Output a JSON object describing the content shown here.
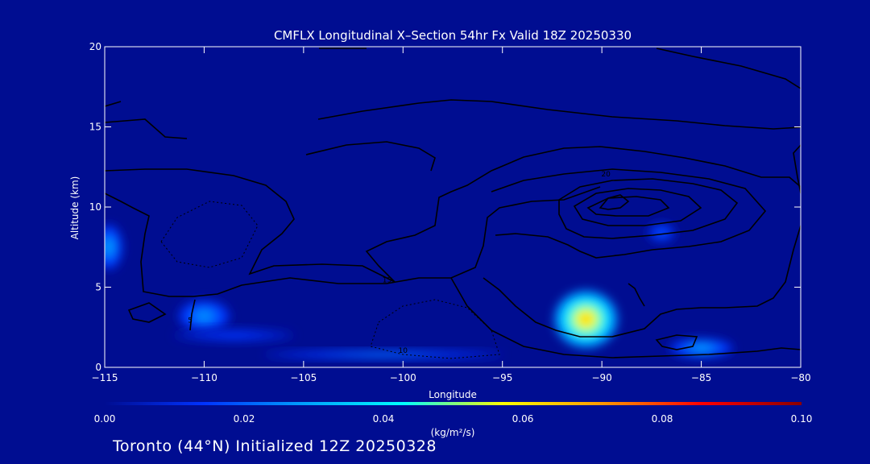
{
  "chart_data": {
    "type": "heatmap",
    "title": "CMFLX Longitudinal X–Section 54hr  Fx Valid 18Z 20250330",
    "xlabel": "Longitude",
    "ylabel": "Altitude (km)",
    "xlim": [
      -115,
      -80
    ],
    "ylim": [
      0,
      20
    ],
    "x_ticks": [
      -115,
      -110,
      -105,
      -100,
      -95,
      -90,
      -85,
      -80
    ],
    "x_tick_labels": [
      "−115",
      "−110",
      "−105",
      "−100",
      "−95",
      "−90",
      "−85",
      "−80"
    ],
    "y_ticks": [
      0,
      5,
      10,
      15,
      20
    ],
    "y_tick_labels": [
      "0",
      "5",
      "10",
      "15",
      "20"
    ],
    "colorbar": {
      "min": 0.0,
      "max": 0.1,
      "ticks": [
        0.0,
        0.02,
        0.04,
        0.06,
        0.08,
        0.1
      ],
      "tick_labels": [
        "0.00",
        "0.02",
        "0.04",
        "0.06",
        "0.08",
        "0.10"
      ],
      "unit_label": "(kg/m²/s)",
      "colors": [
        "#000d91",
        "#0033ff",
        "#00a0ff",
        "#00ffff",
        "#ffff00",
        "#ff9900",
        "#ff0000",
        "#8b0000"
      ]
    },
    "hotspots": [
      {
        "lon": -90.8,
        "alt": 3.0,
        "value": 0.065,
        "rx_deg": 1.6,
        "ry_km": 1.8
      },
      {
        "lon": -114.8,
        "alt": 7.5,
        "value": 0.03,
        "rx_deg": 0.7,
        "ry_km": 1.4
      },
      {
        "lon": -110.0,
        "alt": 3.2,
        "value": 0.028,
        "rx_deg": 1.3,
        "ry_km": 1.0
      },
      {
        "lon": -85.0,
        "alt": 1.2,
        "value": 0.03,
        "rx_deg": 1.6,
        "ry_km": 0.6
      },
      {
        "lon": -87.0,
        "alt": 8.4,
        "value": 0.02,
        "rx_deg": 0.7,
        "ry_km": 0.6
      },
      {
        "lon": -101.0,
        "alt": 0.8,
        "value": 0.025,
        "rx_deg": 6.0,
        "ry_km": 0.25
      },
      {
        "lon": -108.5,
        "alt": 2.0,
        "value": 0.015,
        "rx_deg": 3.0,
        "ry_km": 0.4
      }
    ],
    "contour_labels": [
      {
        "text": "20",
        "lon": -89.8,
        "alt": 11.9
      },
      {
        "text": "15",
        "lon": -100.8,
        "alt": 5.3
      },
      {
        "text": "10",
        "lon": -100.0,
        "alt": 0.9
      },
      {
        "text": "5",
        "lon": -110.7,
        "alt": 2.8
      }
    ]
  },
  "footer": "Toronto (44°N) Initialized 12Z 20250328"
}
